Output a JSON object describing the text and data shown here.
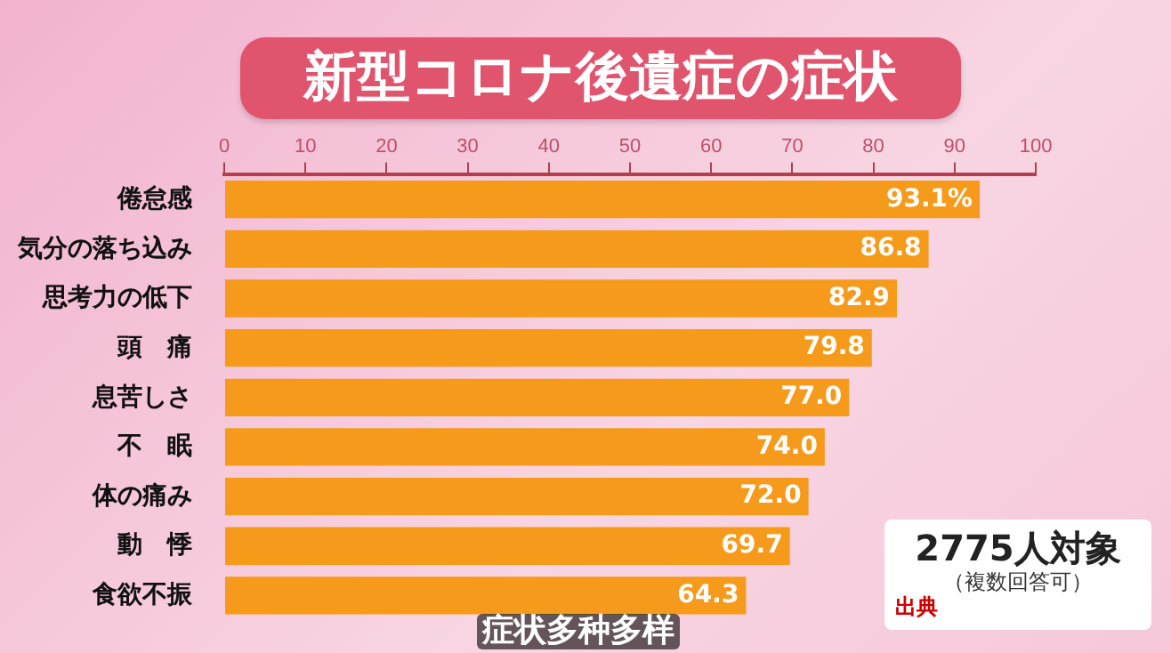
{
  "chart_data": {
    "type": "bar",
    "orientation": "horizontal",
    "title": "新型コロナ後遺症の症状",
    "categories": [
      "倦怠感",
      "気分の落ち込み",
      "思考力の低下",
      "頭　痛",
      "息苦しさ",
      "不　眠",
      "体の痛み",
      "動　悸",
      "食欲不振"
    ],
    "values": [
      93.1,
      86.8,
      82.9,
      79.8,
      77.0,
      74.0,
      72.0,
      69.7,
      64.3
    ],
    "value_labels": [
      "93.1%",
      "86.8",
      "82.9",
      "79.8",
      "77.0",
      "74.0",
      "72.0",
      "69.7",
      "64.3"
    ],
    "color": "#f59a1b",
    "xlim": [
      0,
      100
    ],
    "xticks": [
      0,
      10,
      20,
      30,
      40,
      50,
      60,
      70,
      80,
      90,
      100
    ],
    "grid": false,
    "legend": false,
    "annotations": [
      "2775人対象",
      "（複数回答可）",
      "出典",
      "症状多种多样"
    ]
  }
}
